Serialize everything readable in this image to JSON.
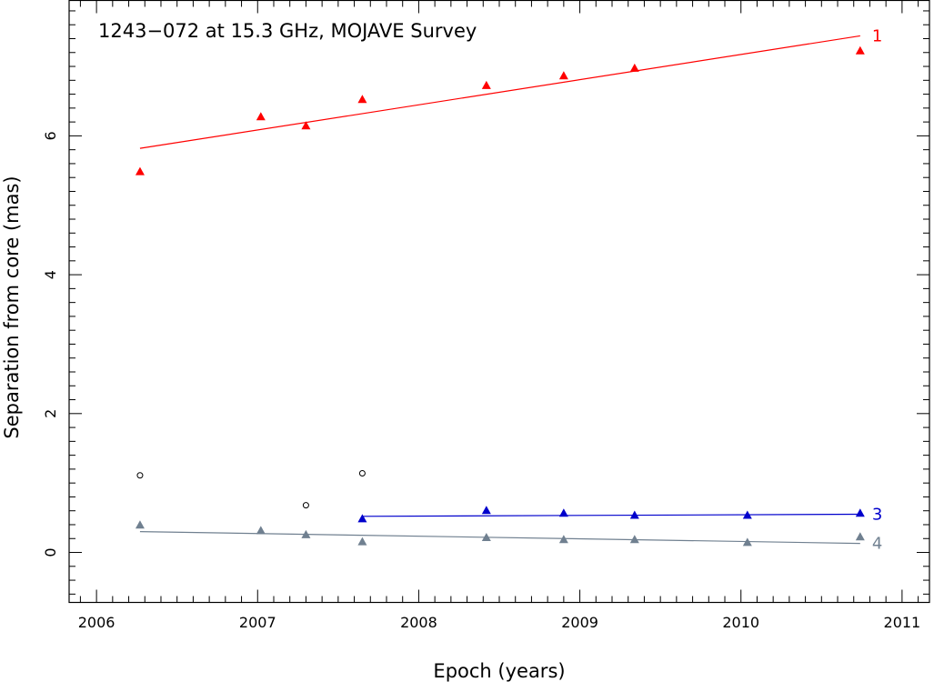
{
  "chart_data": {
    "type": "scatter",
    "title": "1243−072 at 15.3 GHz, MOJAVE Survey",
    "xlabel": "Epoch (years)",
    "ylabel": "Separation from core (mas)",
    "xlim": [
      2005.83,
      2011.17
    ],
    "ylim": [
      -0.72,
      7.95
    ],
    "xticks": [
      2006,
      2007,
      2008,
      2009,
      2010,
      2011
    ],
    "yticks": [
      0,
      2,
      4,
      6
    ],
    "grid": false,
    "series": [
      {
        "name": "1",
        "color": "#ff0000",
        "marker": "triangle",
        "x": [
          2006.27,
          2007.02,
          2007.3,
          2007.65,
          2008.42,
          2008.9,
          2009.34,
          2010.74
        ],
        "y": [
          5.48,
          6.27,
          6.14,
          6.52,
          6.72,
          6.86,
          6.97,
          7.22
        ],
        "fit": [
          [
            2006.27,
            5.82
          ],
          [
            2010.74,
            7.44
          ]
        ]
      },
      {
        "name": "3",
        "color": "#0000cc",
        "marker": "triangle",
        "x": [
          2007.65,
          2008.42,
          2008.9,
          2009.34,
          2010.04,
          2010.74
        ],
        "y": [
          0.48,
          0.6,
          0.56,
          0.53,
          0.53,
          0.56
        ],
        "fit": [
          [
            2007.65,
            0.52
          ],
          [
            2010.74,
            0.55
          ]
        ]
      },
      {
        "name": "4",
        "color": "#708090",
        "marker": "triangle",
        "x": [
          2006.27,
          2007.02,
          2007.3,
          2007.65,
          2008.42,
          2008.9,
          2009.34,
          2010.04,
          2010.74
        ],
        "y": [
          0.39,
          0.31,
          0.25,
          0.15,
          0.21,
          0.18,
          0.18,
          0.14,
          0.22
        ],
        "fit": [
          [
            2006.27,
            0.3
          ],
          [
            2010.74,
            0.13
          ]
        ]
      },
      {
        "color": "#000000",
        "marker": "open-circle",
        "x": [
          2006.27,
          2007.3,
          2007.65
        ],
        "y": [
          1.11,
          0.68,
          1.14
        ]
      }
    ]
  }
}
